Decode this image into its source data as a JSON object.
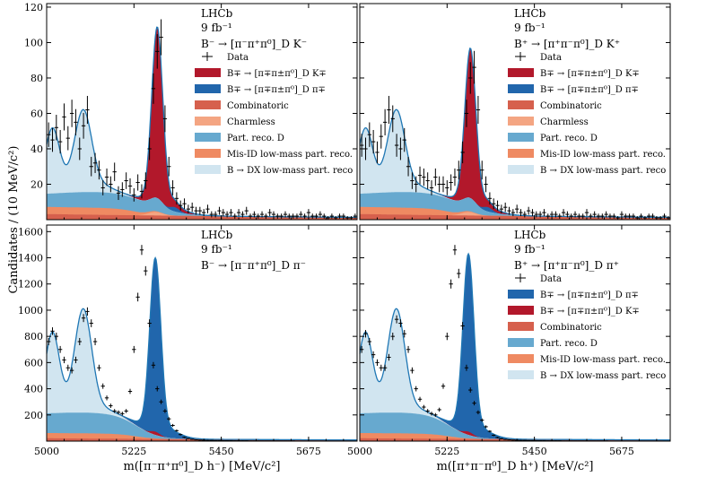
{
  "colors": {
    "sig_red": "#b2182b",
    "sig_blue": "#2166ac",
    "combinatoric": "#d6604d",
    "charmless": "#f4a582",
    "part_reco_d": "#67a9cf",
    "misid": "#ef8a62",
    "bdx": "#d1e5f0",
    "total": "#1f77b4"
  },
  "shared": {
    "ylabel": "Candidates / (10 MeV/c²)",
    "lhcb": "LHCb",
    "lumi": "9 fb⁻¹",
    "xlabel_left": "m([π⁻π⁺π⁰]_D h⁻) [MeV/c²]",
    "xlabel_right": "m([π⁺π⁻π⁰]_D h⁺) [MeV/c²]"
  },
  "chart_data": [
    {
      "id": "tl",
      "type": "area",
      "decay": "B⁻ → [π⁻π⁺π⁰]_D K⁻",
      "xlim": [
        5000,
        5800
      ],
      "ylim": [
        0,
        122
      ],
      "xticks": [
        5000,
        5225,
        5450,
        5675
      ],
      "yticks": [
        20,
        40,
        60,
        80,
        100,
        120
      ],
      "show_x_ticklabels": false,
      "legend": [
        {
          "label": "Data",
          "key": "data"
        },
        {
          "label": "B∓ → [π∓π±π⁰]_D K∓",
          "key": "sig_red"
        },
        {
          "label": "B∓ → [π∓π±π⁰]_D π∓",
          "key": "sig_blue"
        },
        {
          "label": "Combinatoric",
          "key": "combinatoric"
        },
        {
          "label": "Charmless",
          "key": "charmless"
        },
        {
          "label": "Part. reco. D",
          "key": "part_reco_d"
        },
        {
          "label": "Mis-ID low-mass part. reco.",
          "key": "misid"
        },
        {
          "label": "B → DX low-mass part. reco",
          "key": "bdx"
        }
      ],
      "data_y": [
        48,
        45,
        52,
        44,
        58,
        46,
        60,
        55,
        40,
        53,
        62,
        30,
        32,
        28,
        18,
        24,
        20,
        27,
        15,
        17,
        22,
        19,
        14,
        21,
        16,
        22,
        40,
        74,
        95,
        103,
        57,
        30,
        18,
        12,
        8,
        9,
        6,
        7,
        5,
        5,
        4,
        6,
        3,
        3,
        5,
        4,
        3,
        4,
        2,
        4,
        3,
        5,
        2,
        3,
        2,
        3,
        2,
        4,
        3,
        2,
        2,
        3,
        2,
        2,
        2,
        3,
        2,
        4,
        2,
        2,
        3,
        2,
        1,
        2,
        1,
        2,
        2,
        1,
        1,
        2
      ]
    },
    {
      "id": "tr",
      "type": "area",
      "decay": "B⁺ → [π⁺π⁻π⁰]_D K⁺",
      "xlim": [
        5000,
        5800
      ],
      "ylim": [
        0,
        122
      ],
      "xticks": [
        5000,
        5225,
        5450,
        5675
      ],
      "yticks": [
        20,
        40,
        60,
        80,
        100,
        120
      ],
      "show_x_ticklabels": false,
      "legend": [
        {
          "label": "Data",
          "key": "data"
        },
        {
          "label": "B∓ → [π∓π±π⁰]_D K∓",
          "key": "sig_red"
        },
        {
          "label": "B∓ → [π∓π±π⁰]_D π∓",
          "key": "sig_blue"
        },
        {
          "label": "Combinatoric",
          "key": "combinatoric"
        },
        {
          "label": "Charmless",
          "key": "charmless"
        },
        {
          "label": "Part. reco. D",
          "key": "part_reco_d"
        },
        {
          "label": "Mis-ID low-mass part. reco.",
          "key": "misid"
        },
        {
          "label": "B → DX low-mass part. reco",
          "key": "bdx"
        }
      ],
      "data_y": [
        42,
        40,
        48,
        44,
        38,
        47,
        55,
        62,
        57,
        42,
        40,
        45,
        30,
        22,
        20,
        25,
        24,
        22,
        18,
        24,
        20,
        20,
        18,
        21,
        24,
        28,
        38,
        60,
        80,
        86,
        62,
        28,
        20,
        12,
        9,
        8,
        6,
        7,
        5,
        4,
        6,
        4,
        3,
        5,
        4,
        3,
        3,
        4,
        2,
        3,
        3,
        2,
        4,
        3,
        2,
        3,
        2,
        2,
        4,
        2,
        3,
        2,
        2,
        3,
        2,
        2,
        1,
        3,
        2,
        2,
        2,
        1,
        2,
        1,
        2,
        2,
        1,
        1,
        2,
        1
      ]
    },
    {
      "id": "bl",
      "type": "area",
      "decay": "B⁻ → [π⁻π⁺π⁰]_D π⁻",
      "xlim": [
        5000,
        5800
      ],
      "ylim": [
        0,
        1650
      ],
      "xticks": [
        5000,
        5225,
        5450,
        5675
      ],
      "yticks": [
        200,
        400,
        600,
        800,
        1000,
        1200,
        1400,
        1600
      ],
      "show_x_ticklabels": true,
      "legend": [],
      "data_y": [
        760,
        840,
        800,
        700,
        620,
        560,
        540,
        620,
        760,
        940,
        990,
        900,
        760,
        560,
        420,
        330,
        270,
        230,
        220,
        210,
        230,
        380,
        700,
        1100,
        1460,
        1300,
        900,
        580,
        400,
        300,
        230,
        170,
        120,
        80,
        50,
        30,
        20,
        14,
        10,
        8,
        7,
        6,
        6,
        5,
        5,
        4,
        4,
        4,
        3,
        3,
        3,
        3,
        2,
        2,
        2,
        2,
        2,
        2,
        2,
        2,
        2,
        2,
        2,
        2,
        1,
        1,
        1,
        1,
        1,
        1,
        1,
        1,
        1,
        1,
        1,
        1,
        1,
        1,
        1,
        1
      ]
    },
    {
      "id": "br",
      "type": "area",
      "decay": "B⁺ → [π⁺π⁻π⁰]_D π⁺",
      "xlim": [
        5000,
        5800
      ],
      "ylim": [
        0,
        1650
      ],
      "xticks": [
        5000,
        5225,
        5450,
        5675
      ],
      "yticks": [
        200,
        400,
        600,
        800,
        1000,
        1200,
        1400,
        1600
      ],
      "show_x_ticklabels": true,
      "legend": [
        {
          "label": "Data",
          "key": "data"
        },
        {
          "label": "B∓ → [π∓π±π⁰]_D π∓",
          "key": "sig_blue"
        },
        {
          "label": "B∓ → [π∓π±π⁰]_D K∓",
          "key": "sig_red"
        },
        {
          "label": "Combinatoric",
          "key": "combinatoric"
        },
        {
          "label": "Part. reco. D",
          "key": "part_reco_d"
        },
        {
          "label": "Mis-ID low-mass part. reco.",
          "key": "misid"
        },
        {
          "label": "B → DX low-mass part. reco",
          "key": "bdx"
        }
      ],
      "data_y": [
        700,
        820,
        760,
        660,
        600,
        560,
        560,
        640,
        800,
        930,
        900,
        820,
        700,
        540,
        400,
        320,
        260,
        230,
        210,
        200,
        240,
        420,
        800,
        1200,
        1460,
        1280,
        880,
        560,
        390,
        290,
        220,
        160,
        110,
        75,
        45,
        28,
        18,
        13,
        10,
        8,
        7,
        6,
        6,
        5,
        5,
        4,
        4,
        4,
        3,
        3,
        3,
        3,
        2,
        2,
        2,
        2,
        2,
        2,
        2,
        2,
        2,
        2,
        2,
        2,
        1,
        1,
        1,
        1,
        1,
        1,
        1,
        1,
        1,
        1,
        1,
        1,
        1,
        1,
        1,
        1
      ]
    }
  ]
}
